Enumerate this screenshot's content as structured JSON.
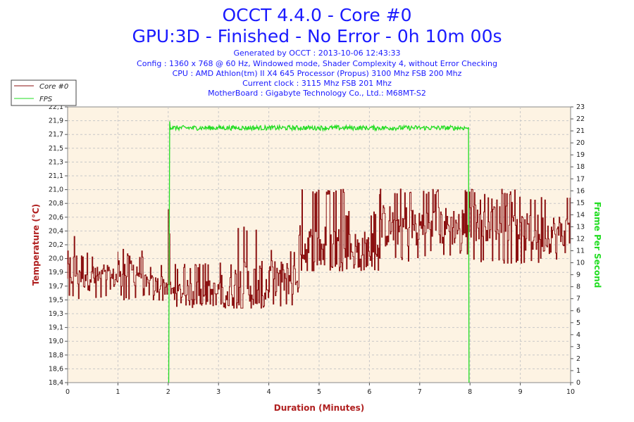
{
  "chart_data": {
    "type": "line",
    "title": "OCCT 4.4.0 - Core #0",
    "subtitle": "GPU:3D - Finished - No Error - 0h 10m 00s",
    "info_lines": [
      "Generated by OCCT : 2013-10-06 12:43:33",
      "Config : 1360 x 768 @ 60 Hz, Windowed mode, Shader Complexity 4, without Error Checking",
      "CPU : AMD Athlon(tm) II X4 645 Processor (Propus) 3100 Mhz FSB 200 Mhz",
      "Current clock : 3115 Mhz FSB 201 Mhz",
      "MotherBoard : Gigabyte Technology Co., Ltd.: M68MT-S2"
    ],
    "xlabel": "Duration (Minutes)",
    "ylabel": "Temperature (°C)",
    "y2label": "Frame Per Second",
    "xlim": [
      0,
      10
    ],
    "ylim": [
      18.4,
      22.1
    ],
    "y2lim": [
      0,
      23
    ],
    "x_ticks": [
      "0",
      "1",
      "2",
      "3",
      "4",
      "5",
      "6",
      "7",
      "8",
      "9",
      "10"
    ],
    "y_ticks": [
      "18,4",
      "18,6",
      "18,8",
      "19,0",
      "19,1",
      "19,3",
      "19,5",
      "19,7",
      "19,9",
      "20,0",
      "20,2",
      "20,4",
      "20,6",
      "20,8",
      "21,0",
      "21,1",
      "21,3",
      "21,5",
      "21,7",
      "21,9",
      "22,1"
    ],
    "y2_ticks": [
      "0",
      "1",
      "2",
      "3",
      "4",
      "5",
      "6",
      "7",
      "8",
      "9",
      "10",
      "11",
      "12",
      "13",
      "14",
      "15",
      "16",
      "17",
      "18",
      "19",
      "20",
      "21",
      "22",
      "23"
    ],
    "grid": true,
    "legend_position": "top-left",
    "colors": {
      "core": "#8b1010",
      "fps": "#22dd22",
      "plot_bg": "#fdf3e3",
      "grid": "#c8c8c8",
      "title": "#1a1aff"
    },
    "series": [
      {
        "name": "Core #0",
        "axis": "left",
        "color": "#8b1010",
        "segments": [
          {
            "x_start": 0.0,
            "x_end": 0.5,
            "low": 19.5,
            "high": 20.4,
            "base": 19.9
          },
          {
            "x_start": 0.5,
            "x_end": 1.0,
            "low": 19.5,
            "high": 20.0,
            "base": 19.8
          },
          {
            "x_start": 1.0,
            "x_end": 1.5,
            "low": 19.5,
            "high": 20.2,
            "base": 19.9
          },
          {
            "x_start": 1.5,
            "x_end": 2.0,
            "low": 19.5,
            "high": 20.0,
            "base": 19.7
          },
          {
            "x_start": 2.0,
            "x_end": 2.05,
            "low": 19.7,
            "high": 20.8,
            "base": 20.2
          },
          {
            "x_start": 2.05,
            "x_end": 3.0,
            "low": 19.4,
            "high": 20.0,
            "base": 19.6
          },
          {
            "x_start": 3.0,
            "x_end": 4.0,
            "low": 19.4,
            "high": 20.5,
            "base": 19.7
          },
          {
            "x_start": 4.0,
            "x_end": 4.6,
            "low": 19.4,
            "high": 20.2,
            "base": 19.8
          },
          {
            "x_start": 4.6,
            "x_end": 5.5,
            "low": 19.9,
            "high": 21.0,
            "base": 20.2
          },
          {
            "x_start": 5.5,
            "x_end": 6.2,
            "low": 19.9,
            "high": 20.7,
            "base": 20.2
          },
          {
            "x_start": 6.2,
            "x_end": 7.0,
            "low": 20.0,
            "high": 21.0,
            "base": 20.5
          },
          {
            "x_start": 7.0,
            "x_end": 8.0,
            "low": 20.1,
            "high": 21.0,
            "base": 20.5
          },
          {
            "x_start": 8.0,
            "x_end": 9.0,
            "low": 20.0,
            "high": 21.0,
            "base": 20.6
          },
          {
            "x_start": 9.0,
            "x_end": 10.0,
            "low": 20.0,
            "high": 20.9,
            "base": 20.4
          }
        ]
      },
      {
        "name": "FPS",
        "axis": "right",
        "color": "#22dd22",
        "x": [
          0,
          2.01,
          2.03,
          2.1,
          3.0,
          4.0,
          5.0,
          6.0,
          7.0,
          7.95,
          7.97,
          7.98,
          10
        ],
        "values": [
          null,
          0,
          21.8,
          21.2,
          21.3,
          21.2,
          21.3,
          21.2,
          21.3,
          21.2,
          21.3,
          0,
          null
        ]
      }
    ]
  }
}
